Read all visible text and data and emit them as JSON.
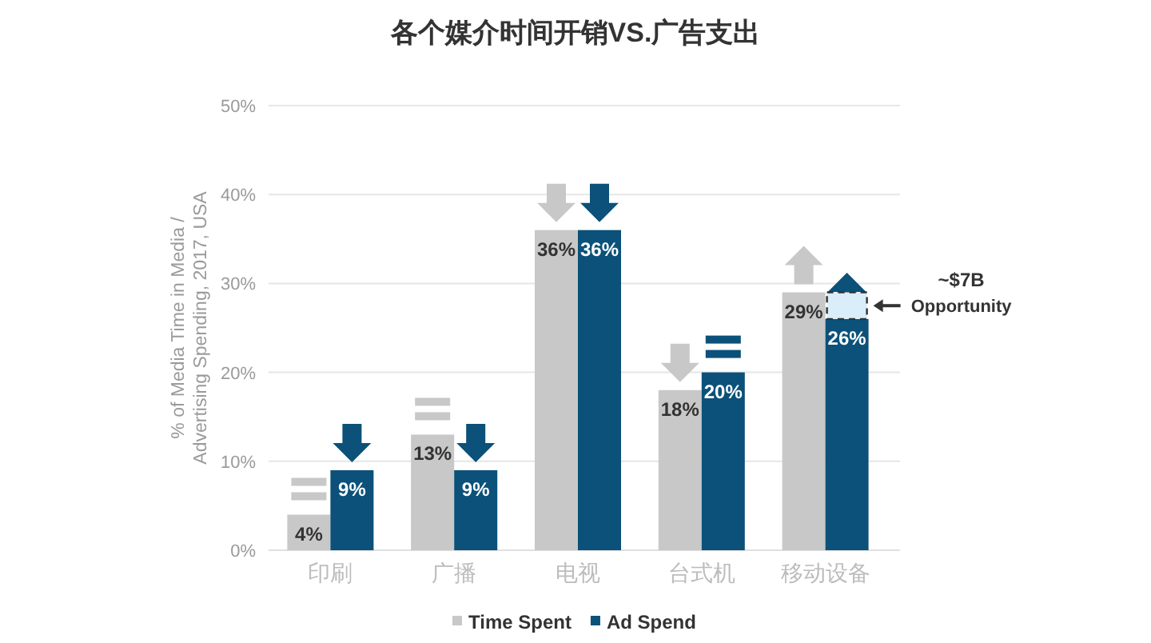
{
  "chart_data": {
    "type": "bar",
    "title": "各个媒介时间开销VS.广告支出",
    "ylabel": "% of Media Time in Media /\nAdvertising Spending, 2017, USA",
    "categories": [
      "印刷",
      "广播",
      "电视",
      "台式机",
      "移动设备"
    ],
    "series": [
      {
        "name": "Time Spent",
        "color": "#c8c8c8",
        "values": [
          4,
          13,
          36,
          18,
          29
        ],
        "value_labels": [
          "4%",
          "13%",
          "36%",
          "18%",
          "29%"
        ]
      },
      {
        "name": "Ad Spend",
        "color": "#0b5179",
        "values": [
          9,
          9,
          36,
          20,
          26
        ],
        "value_labels": [
          "9%",
          "9%",
          "36%",
          "20%",
          "26%"
        ]
      }
    ],
    "ylim": [
      0,
      50
    ],
    "yticks": [
      {
        "value": 0,
        "label": "0%"
      },
      {
        "value": 10,
        "label": "10%"
      },
      {
        "value": 20,
        "label": "20%"
      },
      {
        "value": 30,
        "label": "30%"
      },
      {
        "value": 40,
        "label": "40%"
      },
      {
        "value": 50,
        "label": "50%"
      }
    ],
    "grid": "y",
    "legend": "bottom",
    "annotations": [
      "~$7B\nOpportunity"
    ]
  }
}
